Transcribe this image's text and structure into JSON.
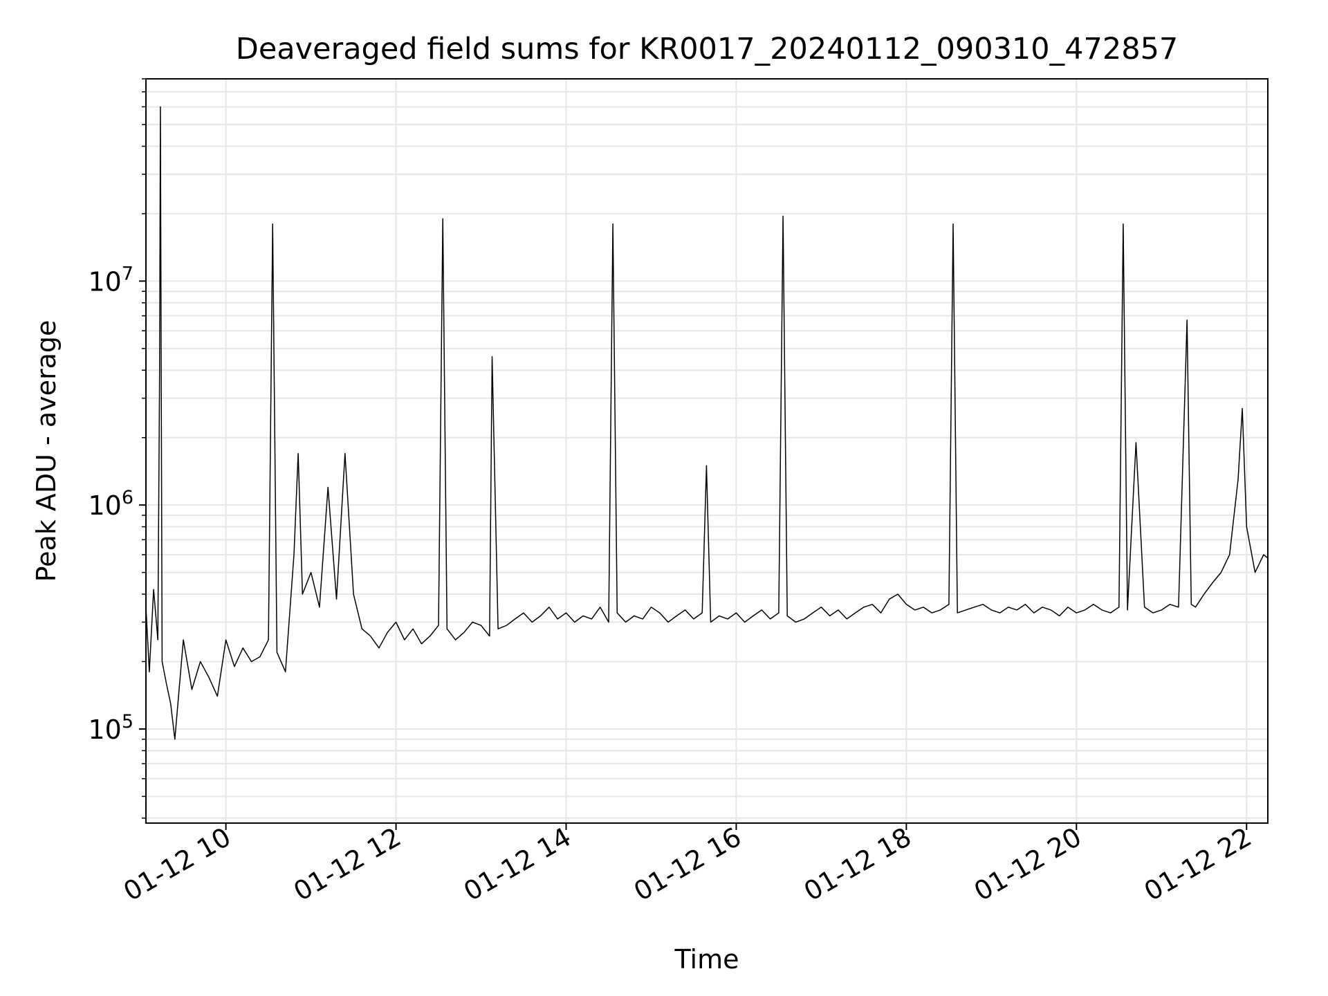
{
  "chart_data": {
    "type": "line",
    "title": "Deaveraged field sums for KR0017_20240112_090310_472857",
    "xlabel": "Time",
    "ylabel": "Peak ADU - average",
    "y_scale": "log",
    "ylim": [
      38000,
      80000000
    ],
    "xlim_hours": [
      9.06,
      22.25
    ],
    "grid": true,
    "line_color": "#000000",
    "grid_color": "#e6e6e6",
    "x_ticks": [
      {
        "value": 10,
        "label": "01-12 10"
      },
      {
        "value": 12,
        "label": "01-12 12"
      },
      {
        "value": 14,
        "label": "01-12 14"
      },
      {
        "value": 16,
        "label": "01-12 16"
      },
      {
        "value": 18,
        "label": "01-12 18"
      },
      {
        "value": 20,
        "label": "01-12 20"
      },
      {
        "value": 22,
        "label": "01-12 22"
      }
    ],
    "y_ticks": [
      {
        "value": 100000,
        "base": "10",
        "exp": "5"
      },
      {
        "value": 1000000,
        "base": "10",
        "exp": "6"
      },
      {
        "value": 10000000,
        "base": "10",
        "exp": "7"
      }
    ],
    "series": [
      {
        "x_hours": [
          9.06,
          9.1,
          9.15,
          9.2,
          9.22,
          9.23,
          9.25,
          9.3,
          9.35,
          9.4,
          9.5,
          9.6,
          9.7,
          9.8,
          9.9,
          10.0,
          10.1,
          10.2,
          10.3,
          10.4,
          10.5,
          10.55,
          10.6,
          10.7,
          10.8,
          10.85,
          10.9,
          11.0,
          11.1,
          11.2,
          11.3,
          11.4,
          11.5,
          11.6,
          11.7,
          11.8,
          11.9,
          12.0,
          12.1,
          12.2,
          12.3,
          12.4,
          12.5,
          12.55,
          12.6,
          12.7,
          12.8,
          12.9,
          13.0,
          13.1,
          13.13,
          13.2,
          13.3,
          13.4,
          13.5,
          13.6,
          13.7,
          13.8,
          13.9,
          14.0,
          14.1,
          14.2,
          14.3,
          14.4,
          14.5,
          14.55,
          14.6,
          14.7,
          14.8,
          14.9,
          15.0,
          15.1,
          15.2,
          15.3,
          15.4,
          15.5,
          15.6,
          15.65,
          15.7,
          15.8,
          15.9,
          16.0,
          16.1,
          16.2,
          16.3,
          16.4,
          16.5,
          16.55,
          16.6,
          16.7,
          16.8,
          16.9,
          17.0,
          17.1,
          17.2,
          17.3,
          17.4,
          17.5,
          17.6,
          17.7,
          17.8,
          17.9,
          18.0,
          18.1,
          18.2,
          18.3,
          18.4,
          18.5,
          18.55,
          18.6,
          18.7,
          18.8,
          18.9,
          19.0,
          19.1,
          19.2,
          19.3,
          19.4,
          19.5,
          19.6,
          19.7,
          19.8,
          19.9,
          20.0,
          20.1,
          20.2,
          20.3,
          20.4,
          20.5,
          20.55,
          20.6,
          20.7,
          20.8,
          20.9,
          21.0,
          21.1,
          21.2,
          21.3,
          21.35,
          21.4,
          21.5,
          21.6,
          21.7,
          21.8,
          21.9,
          21.95,
          22.0,
          22.1,
          22.2,
          22.25
        ],
        "y": [
          350000,
          180000,
          420000,
          250000,
          3800000,
          60000000,
          200000,
          160000,
          130000,
          90000,
          250000,
          150000,
          200000,
          170000,
          140000,
          250000,
          190000,
          230000,
          200000,
          210000,
          250000,
          18000000,
          220000,
          180000,
          600000,
          1700000,
          400000,
          500000,
          350000,
          1200000,
          380000,
          1700000,
          400000,
          280000,
          260000,
          230000,
          270000,
          300000,
          250000,
          280000,
          240000,
          260000,
          290000,
          19000000,
          280000,
          250000,
          270000,
          300000,
          290000,
          260000,
          4600000,
          280000,
          290000,
          310000,
          330000,
          300000,
          320000,
          350000,
          310000,
          330000,
          300000,
          320000,
          310000,
          350000,
          300000,
          18000000,
          330000,
          300000,
          320000,
          310000,
          350000,
          330000,
          300000,
          320000,
          340000,
          310000,
          330000,
          1500000,
          300000,
          320000,
          310000,
          330000,
          300000,
          320000,
          340000,
          310000,
          330000,
          19500000,
          320000,
          300000,
          310000,
          330000,
          350000,
          320000,
          340000,
          310000,
          330000,
          350000,
          360000,
          330000,
          380000,
          400000,
          360000,
          340000,
          350000,
          330000,
          340000,
          360000,
          18000000,
          330000,
          340000,
          350000,
          360000,
          340000,
          330000,
          350000,
          340000,
          360000,
          330000,
          350000,
          340000,
          320000,
          350000,
          330000,
          340000,
          360000,
          340000,
          330000,
          350000,
          18000000,
          340000,
          1900000,
          350000,
          330000,
          340000,
          360000,
          350000,
          6700000,
          360000,
          350000,
          400000,
          450000,
          500000,
          600000,
          1300000,
          2700000,
          800000,
          500000,
          600000,
          580000
        ]
      }
    ]
  }
}
